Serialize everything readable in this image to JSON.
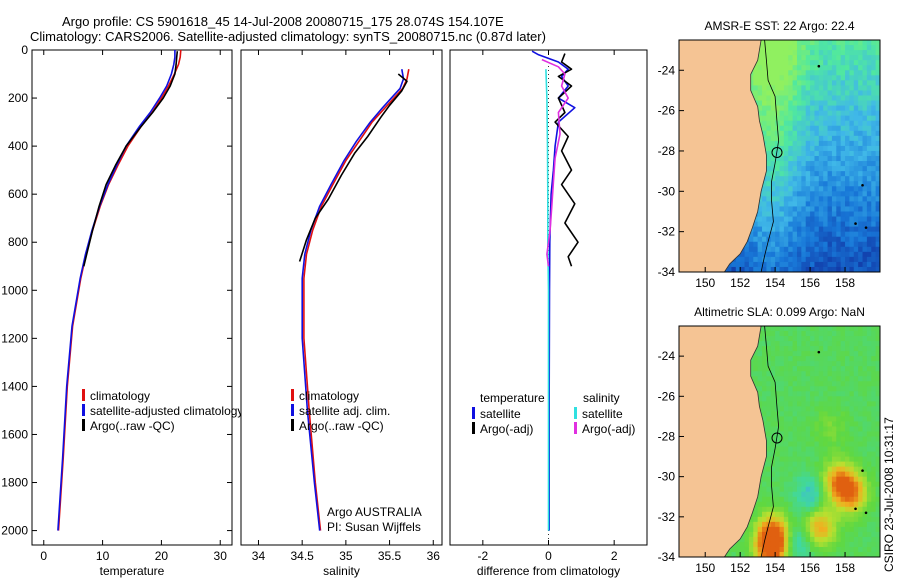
{
  "figure": {
    "title_line1": "Argo profile: CS 5901618_45 14-Jul-2008 20080715_175 28.074S 154.107E",
    "title_line2": "Climatology: CARS2006. Satellite-adjusted climatology: synTS_20080715.nc (0.87d later)",
    "credit": "CSIRO 23-Jul-2008 10:31:17",
    "float_info_line1": "Argo AUSTRALIA",
    "float_info_line2": "PI: Susan Wijffels",
    "colors": {
      "climatology": "#e01010",
      "satellite": "#1010e0",
      "argo": "#000000",
      "sat_diff_salinity": "#30e0e0",
      "argo_diff_salinity": "#e030e0",
      "land": "#f5c494"
    }
  },
  "chart_data": [
    {
      "type": "line",
      "id": "temperature-profile",
      "xlabel": "temperature",
      "ylabel": "",
      "xlim": [
        -2,
        32
      ],
      "ylim": [
        2060,
        0
      ],
      "xticks": [
        0,
        10,
        20,
        30
      ],
      "yticks": [
        0,
        200,
        400,
        600,
        800,
        1000,
        1200,
        1400,
        1600,
        1800,
        2000
      ],
      "legend": [
        "climatology",
        "satellite-adjusted climatology",
        "Argo(..raw -QC)"
      ],
      "series": [
        {
          "name": "climatology",
          "color_key": "climatology",
          "points": [
            [
              23.3,
              0
            ],
            [
              23.2,
              30
            ],
            [
              22.9,
              60
            ],
            [
              22.2,
              100
            ],
            [
              21.2,
              150
            ],
            [
              20.0,
              200
            ],
            [
              18.4,
              260
            ],
            [
              16.5,
              320
            ],
            [
              14.3,
              400
            ],
            [
              12.6,
              480
            ],
            [
              11.0,
              560
            ],
            [
              9.6,
              650
            ],
            [
              8.3,
              750
            ],
            [
              7.2,
              850
            ],
            [
              6.3,
              950
            ],
            [
              4.9,
              1150
            ],
            [
              4.0,
              1400
            ],
            [
              3.3,
              1700
            ],
            [
              2.5,
              2000
            ]
          ]
        },
        {
          "name": "satellite-adjusted climatology",
          "color_key": "satellite",
          "points": [
            [
              22.3,
              0
            ],
            [
              22.3,
              30
            ],
            [
              22.1,
              60
            ],
            [
              21.7,
              100
            ],
            [
              20.9,
              150
            ],
            [
              19.7,
              200
            ],
            [
              18.1,
              260
            ],
            [
              16.2,
              320
            ],
            [
              14.0,
              400
            ],
            [
              12.4,
              480
            ],
            [
              10.9,
              560
            ],
            [
              9.5,
              650
            ],
            [
              8.2,
              750
            ],
            [
              7.1,
              850
            ],
            [
              6.2,
              950
            ],
            [
              4.8,
              1150
            ],
            [
              3.9,
              1400
            ],
            [
              3.2,
              1700
            ],
            [
              2.4,
              2000
            ]
          ]
        },
        {
          "name": "Argo(..raw -QC)",
          "color_key": "argo",
          "points": [
            [
              22.7,
              5
            ],
            [
              22.6,
              30
            ],
            [
              22.5,
              60
            ],
            [
              22.3,
              100
            ],
            [
              21.5,
              150
            ],
            [
              20.3,
              200
            ],
            [
              18.5,
              260
            ],
            [
              16.5,
              320
            ],
            [
              14.0,
              400
            ],
            [
              12.2,
              480
            ],
            [
              10.6,
              560
            ],
            [
              9.4,
              650
            ],
            [
              8.3,
              750
            ],
            [
              7.3,
              850
            ],
            [
              6.8,
              900
            ]
          ]
        }
      ]
    },
    {
      "type": "line",
      "id": "salinity-profile",
      "xlabel": "salinity",
      "ylabel": "",
      "xlim": [
        33.8,
        36.1
      ],
      "ylim": [
        2060,
        0
      ],
      "xticks": [
        34,
        34.5,
        35,
        35.5,
        36
      ],
      "xtick_labels": [
        "34",
        "34.5",
        "35",
        "35.5",
        "36"
      ],
      "yticks": [],
      "legend": [
        "climatology",
        "satellite adj. clim.",
        "Argo(..raw -QC)"
      ],
      "series": [
        {
          "name": "climatology",
          "color_key": "climatology",
          "points": [
            [
              35.72,
              80
            ],
            [
              35.7,
              120
            ],
            [
              35.65,
              160
            ],
            [
              35.55,
              200
            ],
            [
              35.45,
              240
            ],
            [
              35.3,
              300
            ],
            [
              35.15,
              380
            ],
            [
              35.0,
              460
            ],
            [
              34.85,
              560
            ],
            [
              34.72,
              650
            ],
            [
              34.62,
              750
            ],
            [
              34.55,
              850
            ],
            [
              34.52,
              950
            ],
            [
              34.52,
              1200
            ],
            [
              34.58,
              1500
            ],
            [
              34.65,
              1800
            ],
            [
              34.71,
              2000
            ]
          ]
        },
        {
          "name": "satellite adj. clim.",
          "color_key": "satellite",
          "points": [
            [
              35.64,
              80
            ],
            [
              35.66,
              120
            ],
            [
              35.62,
              160
            ],
            [
              35.52,
              200
            ],
            [
              35.42,
              240
            ],
            [
              35.28,
              300
            ],
            [
              35.12,
              380
            ],
            [
              34.98,
              460
            ],
            [
              34.83,
              560
            ],
            [
              34.7,
              650
            ],
            [
              34.6,
              750
            ],
            [
              34.53,
              850
            ],
            [
              34.5,
              950
            ],
            [
              34.5,
              1200
            ],
            [
              34.56,
              1500
            ],
            [
              34.64,
              1800
            ],
            [
              34.7,
              2000
            ]
          ]
        },
        {
          "name": "Argo(..raw -QC)",
          "color_key": "argo",
          "points": [
            [
              35.6,
              100
            ],
            [
              35.7,
              130
            ],
            [
              35.64,
              170
            ],
            [
              35.5,
              230
            ],
            [
              35.4,
              280
            ],
            [
              35.25,
              360
            ],
            [
              35.1,
              430
            ],
            [
              34.95,
              520
            ],
            [
              34.8,
              620
            ],
            [
              34.65,
              700
            ],
            [
              34.55,
              790
            ],
            [
              34.47,
              880
            ]
          ]
        }
      ]
    },
    {
      "type": "line",
      "id": "difference-profile",
      "xlabel": "difference from climatology",
      "ylabel": "",
      "xlim": [
        -3.0,
        3.0
      ],
      "ylim": [
        2060,
        0
      ],
      "xticks": [
        -2,
        0,
        2
      ],
      "yticks": [],
      "legend_temperature": {
        "title": "temperature",
        "entries": [
          "satellite",
          "Argo(-adj)"
        ]
      },
      "legend_salinity": {
        "title": "salinity",
        "entries": [
          "satellite",
          "Argo(-adj)"
        ]
      },
      "series": [
        {
          "name": "temperature satellite",
          "color_key": "satellite",
          "points": [
            [
              -0.5,
              5
            ],
            [
              -0.3,
              20
            ],
            [
              0.3,
              50
            ],
            [
              0.6,
              80
            ],
            [
              0.4,
              110
            ],
            [
              0.6,
              150
            ],
            [
              0.3,
              200
            ],
            [
              0.8,
              240
            ],
            [
              0.3,
              300
            ],
            [
              0.2,
              400
            ],
            [
              0.15,
              500
            ],
            [
              0.08,
              600
            ],
            [
              0.04,
              800
            ],
            [
              0.03,
              1000
            ],
            [
              0.02,
              1400
            ],
            [
              0.02,
              2000
            ]
          ]
        },
        {
          "name": "temperature Argo(-adj)",
          "color_key": "argo",
          "points": [
            [
              0.5,
              15
            ],
            [
              0.4,
              50
            ],
            [
              0.7,
              80
            ],
            [
              0.3,
              110
            ],
            [
              0.7,
              150
            ],
            [
              0.3,
              200
            ],
            [
              0.5,
              260
            ],
            [
              0.2,
              300
            ],
            [
              0.6,
              360
            ],
            [
              0.4,
              420
            ],
            [
              0.7,
              500
            ],
            [
              0.4,
              560
            ],
            [
              0.8,
              640
            ],
            [
              0.5,
              720
            ],
            [
              0.9,
              800
            ],
            [
              0.6,
              860
            ],
            [
              0.7,
              900
            ]
          ]
        },
        {
          "name": "salinity satellite",
          "color_key": "sat_diff_salinity",
          "points": [
            [
              -0.08,
              80
            ],
            [
              -0.05,
              200
            ],
            [
              -0.03,
              400
            ],
            [
              -0.02,
              600
            ],
            [
              -0.02,
              800
            ],
            [
              0.0,
              1000
            ],
            [
              0.0,
              2000
            ]
          ]
        },
        {
          "name": "salinity Argo(-adj)",
          "color_key": "argo_diff_salinity",
          "points": [
            [
              -0.2,
              40
            ],
            [
              0.3,
              70
            ],
            [
              0.5,
              100
            ],
            [
              0.4,
              150
            ],
            [
              0.6,
              200
            ],
            [
              0.3,
              260
            ],
            [
              0.35,
              350
            ],
            [
              0.2,
              450
            ],
            [
              0.15,
              550
            ],
            [
              0.1,
              650
            ],
            [
              0.05,
              750
            ],
            [
              -0.05,
              850
            ],
            [
              0.0,
              900
            ]
          ]
        }
      ]
    },
    {
      "type": "heatmap",
      "id": "sst-map",
      "title": "AMSR-E SST: 22 Argo: 22.4",
      "xlim": [
        148.5,
        160
      ],
      "ylim": [
        -34,
        -22.5
      ],
      "xticks": [
        150,
        152,
        154,
        156,
        158
      ],
      "yticks": [
        -24,
        -26,
        -28,
        -30,
        -32,
        -34
      ],
      "profile_position": {
        "lon": 154.107,
        "lat": -28.074
      },
      "colorscale": [
        "#1030a0",
        "#1878d8",
        "#40b8e8",
        "#50e8a0",
        "#90f060"
      ],
      "coast": [
        [
          153.2,
          -22.5
        ],
        [
          153.0,
          -23.5
        ],
        [
          152.6,
          -24.2
        ],
        [
          152.6,
          -25.0
        ],
        [
          153.0,
          -25.8
        ],
        [
          153.1,
          -26.5
        ],
        [
          153.3,
          -27.2
        ],
        [
          153.5,
          -28.2
        ],
        [
          153.5,
          -29.0
        ],
        [
          153.2,
          -30.0
        ],
        [
          153.0,
          -31.0
        ],
        [
          152.7,
          -31.8
        ],
        [
          152.4,
          -32.5
        ],
        [
          152.0,
          -33.1
        ],
        [
          151.4,
          -33.6
        ],
        [
          151.1,
          -34.0
        ]
      ],
      "contour": [
        [
          153.4,
          -22.5
        ],
        [
          153.5,
          -23.5
        ],
        [
          153.6,
          -24.5
        ],
        [
          154.0,
          -25.3
        ],
        [
          154.1,
          -26.5
        ],
        [
          154.2,
          -27.5
        ],
        [
          154.0,
          -28.6
        ],
        [
          153.8,
          -29.5
        ],
        [
          153.8,
          -30.5
        ],
        [
          153.9,
          -31.5
        ],
        [
          153.6,
          -32.5
        ],
        [
          153.4,
          -33.2
        ],
        [
          153.2,
          -34.0
        ]
      ],
      "islands": [
        [
          156.5,
          -23.8
        ],
        [
          159.0,
          -29.7
        ],
        [
          158.6,
          -31.6
        ],
        [
          159.2,
          -31.8
        ]
      ]
    },
    {
      "type": "heatmap",
      "id": "sla-map",
      "title": "Altimetric SLA: 0.099 Argo: NaN",
      "xlim": [
        148.5,
        160
      ],
      "ylim": [
        -34,
        -22.5
      ],
      "xticks": [
        150,
        152,
        154,
        156,
        158
      ],
      "yticks": [
        -24,
        -26,
        -28,
        -30,
        -32,
        -34
      ],
      "profile_position": {
        "lon": 154.107,
        "lat": -28.074
      },
      "colorscale": [
        "#1838c0",
        "#40a8f0",
        "#40d8a0",
        "#60d840",
        "#b8e030",
        "#f0b020",
        "#e06010"
      ],
      "coast": [
        [
          153.2,
          -22.5
        ],
        [
          153.0,
          -23.5
        ],
        [
          152.6,
          -24.2
        ],
        [
          152.6,
          -25.0
        ],
        [
          153.0,
          -25.8
        ],
        [
          153.1,
          -26.5
        ],
        [
          153.3,
          -27.2
        ],
        [
          153.5,
          -28.2
        ],
        [
          153.5,
          -29.0
        ],
        [
          153.2,
          -30.0
        ],
        [
          153.0,
          -31.0
        ],
        [
          152.7,
          -31.8
        ],
        [
          152.4,
          -32.5
        ],
        [
          152.0,
          -33.1
        ],
        [
          151.4,
          -33.6
        ],
        [
          151.1,
          -34.0
        ]
      ],
      "contour": [
        [
          153.4,
          -22.5
        ],
        [
          153.5,
          -23.5
        ],
        [
          153.6,
          -24.5
        ],
        [
          154.0,
          -25.3
        ],
        [
          154.1,
          -26.5
        ],
        [
          154.2,
          -27.5
        ],
        [
          154.0,
          -28.6
        ],
        [
          153.8,
          -29.5
        ],
        [
          153.8,
          -30.5
        ],
        [
          153.9,
          -31.5
        ],
        [
          153.6,
          -32.5
        ],
        [
          153.4,
          -33.2
        ],
        [
          153.2,
          -34.0
        ]
      ],
      "islands": [
        [
          156.5,
          -23.8
        ],
        [
          159.0,
          -29.7
        ],
        [
          158.6,
          -31.6
        ],
        [
          159.2,
          -31.8
        ]
      ],
      "features": [
        {
          "lon": 156.0,
          "lat": -30.9,
          "value": -2
        },
        {
          "lon": 155.0,
          "lat": -32.0,
          "value": 0
        },
        {
          "lon": 153.9,
          "lat": -32.8,
          "value": 5
        },
        {
          "lon": 157.6,
          "lat": -30.2,
          "value": 4
        },
        {
          "lon": 158.3,
          "lat": -30.8,
          "value": 5
        },
        {
          "lon": 155.2,
          "lat": -33.3,
          "value": -2
        },
        {
          "lon": 156.6,
          "lat": -32.5,
          "value": 4
        },
        {
          "lon": 155.6,
          "lat": -25.8,
          "value": 0
        },
        {
          "lon": 157.2,
          "lat": -27.6,
          "value": 1
        },
        {
          "lon": 153.8,
          "lat": -33.6,
          "value": 6
        }
      ]
    }
  ]
}
